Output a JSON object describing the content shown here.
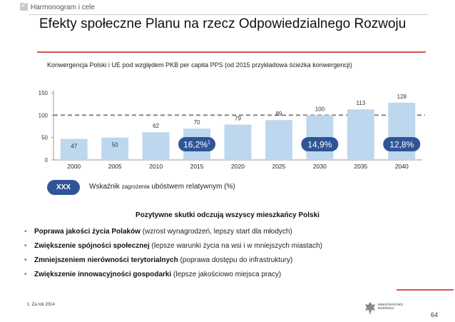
{
  "header": {
    "breadcrumb": "Harmonogram i cele",
    "title": "Efekty społeczne Planu na rzecz Odpowiedzialnego Rozwoju"
  },
  "colors": {
    "bar": "#bdd7ee",
    "badge": "#2f5597",
    "accent": "#d9534f",
    "dashed": "#7f7f7f"
  },
  "chart_data": {
    "type": "bar",
    "title": "Konwergencja Polski i UE pod względem PKB per capita PPS (od 2015 przykładowa ścieżka konwergencji)",
    "categories": [
      "2000",
      "2005",
      "2010",
      "2015",
      "2020",
      "2025",
      "2030",
      "2035",
      "2040"
    ],
    "values": [
      47,
      50,
      62,
      70,
      79,
      89,
      100,
      113,
      128
    ],
    "ylim": [
      0,
      150
    ],
    "yticks": [
      0,
      50,
      100,
      150
    ],
    "reference_line": 100,
    "xlabel": "",
    "ylabel": "",
    "badges": [
      {
        "category": "2015",
        "label": "16,2%",
        "superscript": "1"
      },
      {
        "category": "2030",
        "label": "14,9%",
        "superscript": ""
      },
      {
        "category": "2040",
        "label": "12,8%",
        "superscript": ""
      }
    ]
  },
  "legend": {
    "badge": "XXX",
    "text_a": "Wskaźnik ",
    "text_b": "zagrożenia",
    "text_c": " ubóstwem relatywnym (%)"
  },
  "section": {
    "heading": "Pozytywne skutki odczują wszyscy mieszkańcy Polski",
    "bullets": [
      {
        "bold": "Poprawa jakości życia Polaków",
        "rest": " (wzrost wynagrodzeń, lepszy start dla młodych)"
      },
      {
        "bold": "Zwiększenie spójności społecznej",
        "rest": " (lepsze warunki życia na wsi i w mniejszych miastach)"
      },
      {
        "bold": "Zmniejszeniem nierówności terytorialnych",
        "rest": " (poprawa dostępu do infrastruktury)"
      },
      {
        "bold": "Zwiększenie innowacyjności gospodarki",
        "rest": " (lepsze jakościowo miejsca pracy)"
      }
    ]
  },
  "footer": {
    "footnote": "1. Za rok 2014",
    "ministry_line1": "MINISTERSTWO",
    "ministry_line2": "ROZWOJU",
    "page_number": "64"
  }
}
